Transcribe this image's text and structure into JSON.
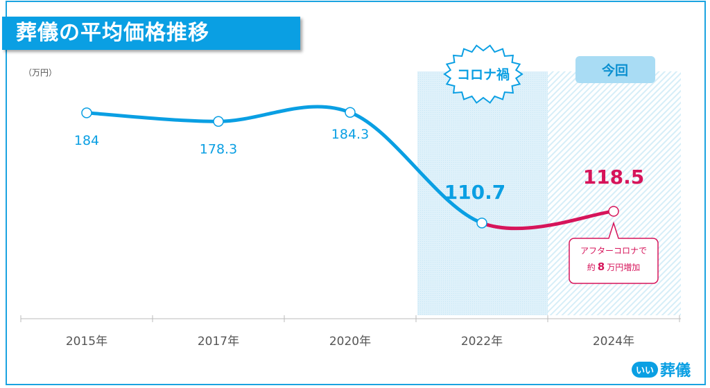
{
  "title": "葬儀の平均価格推移",
  "unit_label": "（万円）",
  "logo": {
    "mark": "いい",
    "text": "葬儀"
  },
  "colors": {
    "blue": "#0a9fe3",
    "pink": "#d6145a"
  },
  "chart_data": {
    "type": "line",
    "title": "葬儀の平均価格推移",
    "ylabel": "（万円）",
    "xlabel": "",
    "categories": [
      "2015年",
      "2017年",
      "2020年",
      "2022年",
      "2024年"
    ],
    "values": [
      184,
      178.3,
      184.3,
      110.7,
      118.5
    ],
    "value_labels": [
      "184",
      "178.3",
      "184.3",
      "110.7",
      "118.5"
    ],
    "ylim": [
      47,
      213
    ],
    "grid": false,
    "highlight_regions": [
      {
        "category": "2022年",
        "label": "コロナ禍"
      },
      {
        "category": "2024年",
        "label": "今回"
      }
    ],
    "annotation": {
      "line1": "アフターコロナで",
      "prefix": "約",
      "number": "8",
      "suffix": "万円増加"
    }
  }
}
